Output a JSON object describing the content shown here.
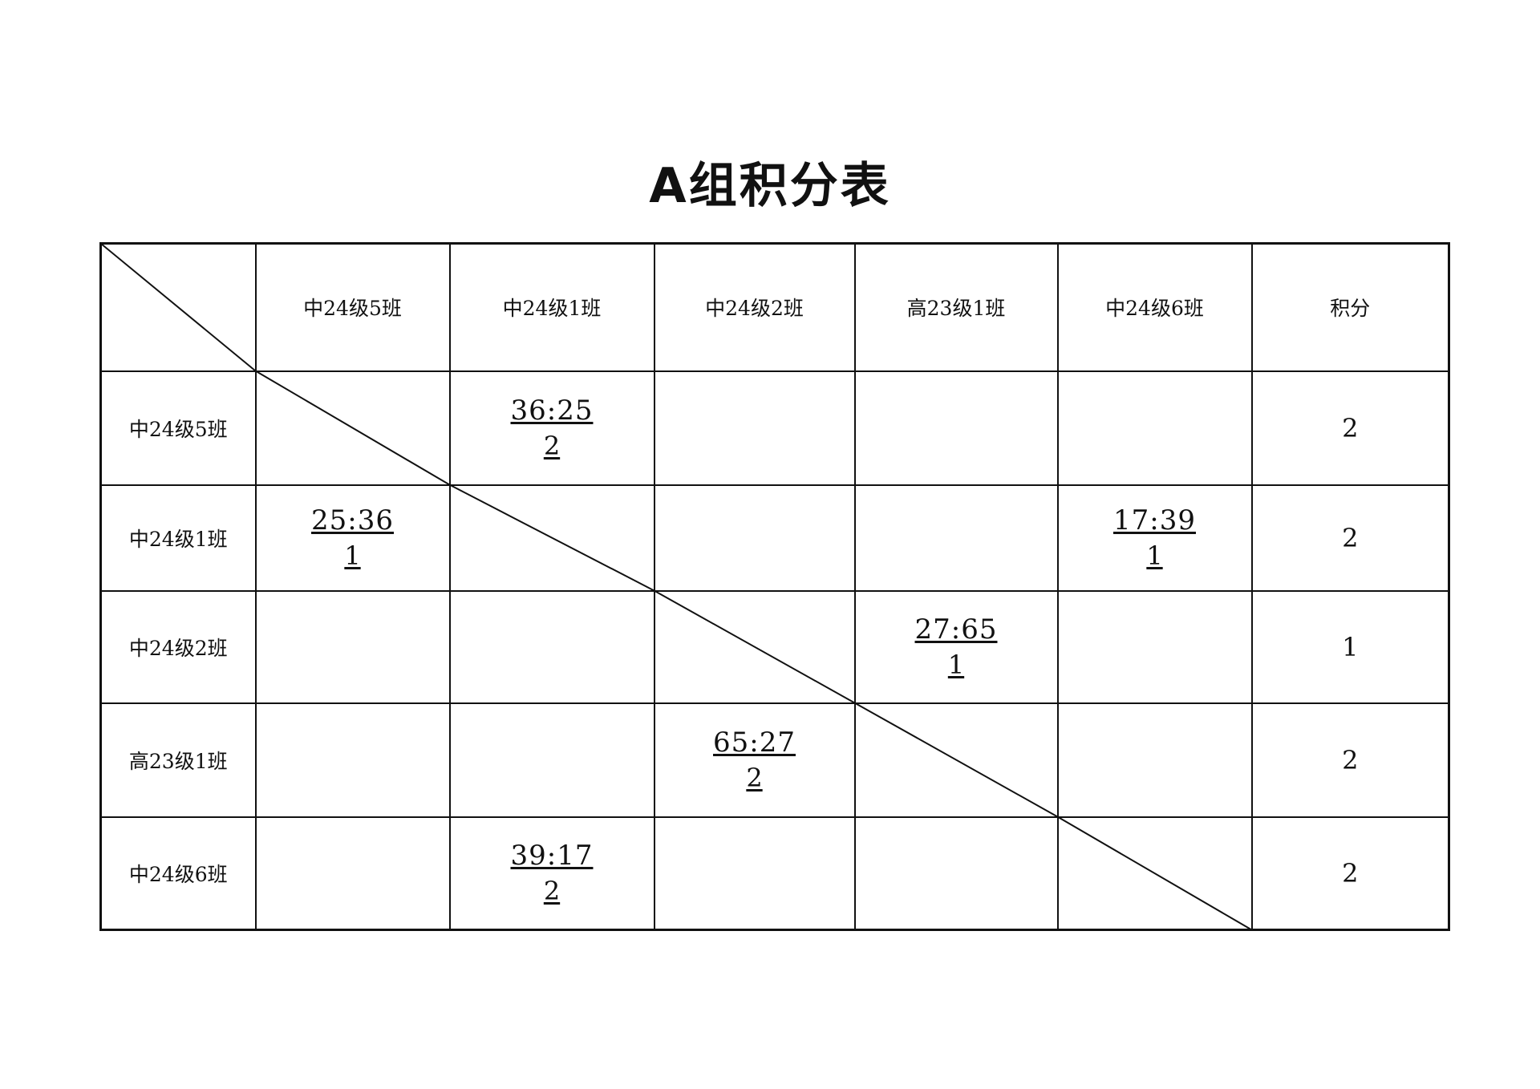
{
  "title": "A组积分表",
  "points_header": "积分",
  "column_headers": [
    "中24级5班",
    "中24级1班",
    "中24级2班",
    "高23级1班",
    "中24级6班"
  ],
  "rows": [
    {
      "team": "中24级5班",
      "cells": [
        null,
        {
          "score": "36:25",
          "points": "2"
        },
        null,
        null,
        null
      ],
      "total": "2"
    },
    {
      "team": "中24级1班",
      "cells": [
        {
          "score": "25:36",
          "points": "1"
        },
        null,
        null,
        null,
        {
          "score": "17:39",
          "points": "1"
        }
      ],
      "total": "2"
    },
    {
      "team": "中24级2班",
      "cells": [
        null,
        null,
        null,
        {
          "score": "27:65",
          "points": "1"
        },
        null
      ],
      "total": "1"
    },
    {
      "team": "高23级1班",
      "cells": [
        null,
        null,
        {
          "score": "65:27",
          "points": "2"
        },
        null,
        null
      ],
      "total": "2"
    },
    {
      "team": "中24级6班",
      "cells": [
        null,
        {
          "score": "39:17",
          "points": "2"
        },
        null,
        null,
        null
      ],
      "total": "2"
    }
  ]
}
